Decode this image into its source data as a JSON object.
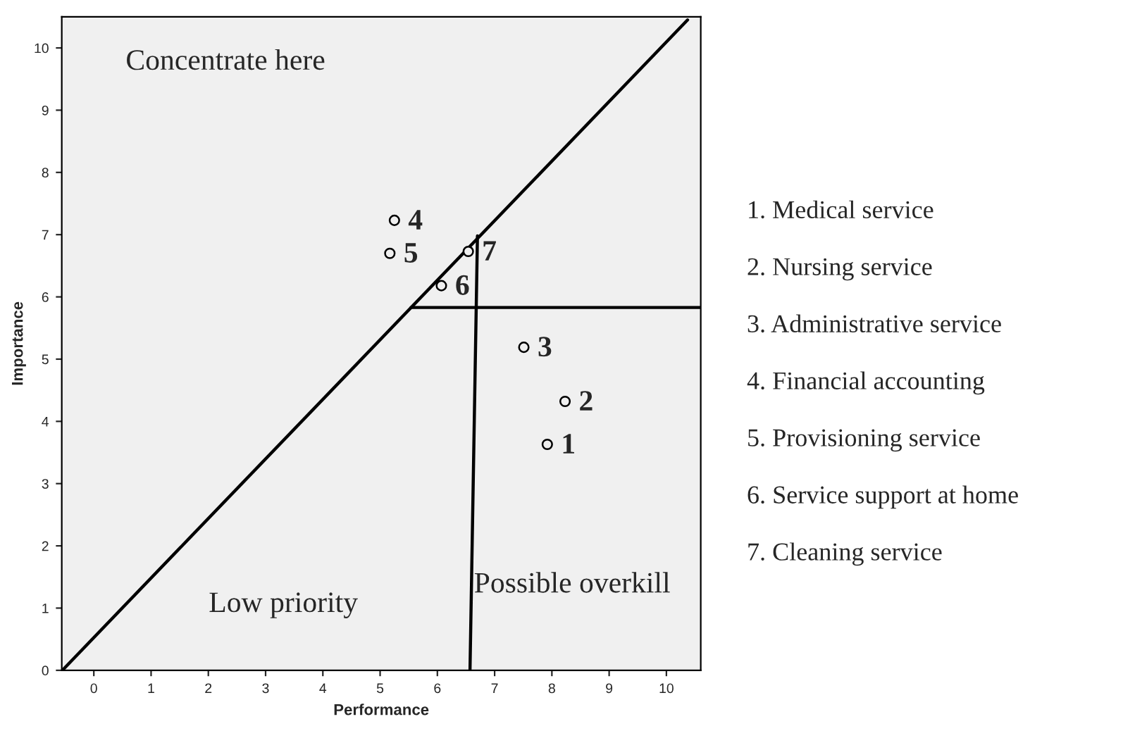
{
  "chart_data": {
    "type": "scatter",
    "xlabel": "Performance",
    "ylabel": "Importance",
    "xlim": [
      -0.56,
      10.6
    ],
    "ylim": [
      0,
      10.5
    ],
    "xticks": [
      0,
      1,
      2,
      3,
      4,
      5,
      6,
      7,
      8,
      9,
      10
    ],
    "yticks": [
      0,
      1,
      2,
      3,
      4,
      5,
      6,
      7,
      8,
      9,
      10
    ],
    "grid": false,
    "legend": false,
    "series": [
      {
        "color": "#000000",
        "marker": "circle",
        "x": [
          7.92,
          8.23,
          7.51,
          5.25,
          5.17,
          6.07,
          6.54
        ],
        "values": [
          3.63,
          4.32,
          5.19,
          7.23,
          6.7,
          6.18,
          6.73
        ]
      },
      {
        "type": "line",
        "color": "#000000",
        "marker": "none",
        "x": [
          -0.55,
          10.37
        ],
        "values": [
          0,
          10.45
        ]
      },
      {
        "type": "line",
        "color": "#000000",
        "marker": "none",
        "x": [
          5.54,
          10.6
        ],
        "values": [
          5.83,
          5.83
        ]
      },
      {
        "type": "line",
        "color": "#000000",
        "marker": "none",
        "x": [
          6.57,
          6.7
        ],
        "values": [
          0,
          6.98
        ]
      }
    ],
    "annotations": [
      {
        "text": "1",
        "x": 7.92,
        "y": 3.63
      },
      {
        "text": "2",
        "x": 8.23,
        "y": 4.32
      },
      {
        "text": "3",
        "x": 7.51,
        "y": 5.19
      },
      {
        "text": "4",
        "x": 5.25,
        "y": 7.23
      },
      {
        "text": "5",
        "x": 5.17,
        "y": 6.7
      },
      {
        "text": "6",
        "x": 6.07,
        "y": 6.18
      },
      {
        "text": "7",
        "x": 6.54,
        "y": 6.73
      },
      "Concentrate here",
      "Low priority",
      "Possible overkill",
      "1. Medical service",
      "2. Nursing service",
      "3. Administrative service",
      "4. Financial accounting",
      "5. Provisioning service",
      "6. Service support at home",
      "7. Cleaning service"
    ]
  }
}
